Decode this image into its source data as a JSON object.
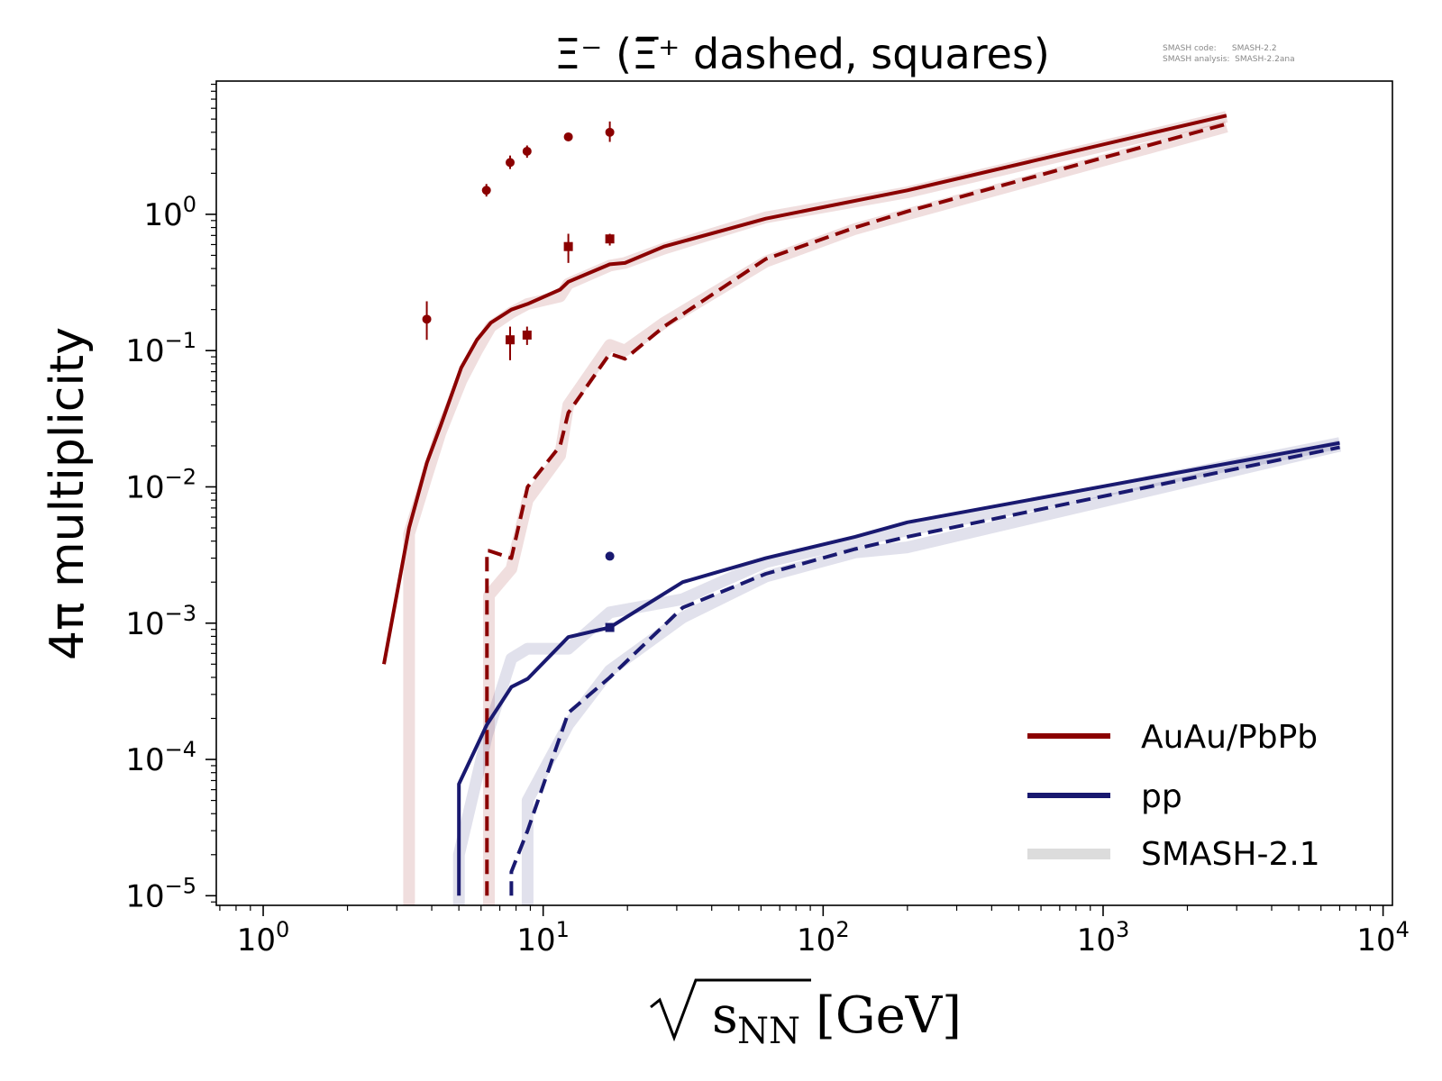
{
  "chart_data": {
    "type": "line",
    "title": "Ξ⁻ (Ξ̅⁺ dashed, squares)",
    "version_lines": [
      "SMASH code:      SMASH-2.2",
      "SMASH analysis:  SMASH-2.2ana"
    ],
    "ylabel": "4π multiplicity",
    "xlabel_radicand": "s",
    "xlabel_subscript": "NN",
    "xlabel_unit": "[GeV]",
    "x_scale": "log",
    "y_scale": "log",
    "xlim": [
      0.68,
      10800
    ],
    "ylim": [
      8.5e-06,
      9.5
    ],
    "x_ticks": [
      {
        "v": 1,
        "base": "10",
        "exp": "0"
      },
      {
        "v": 10,
        "base": "10",
        "exp": "1"
      },
      {
        "v": 100,
        "base": "10",
        "exp": "2"
      },
      {
        "v": 1000,
        "base": "10",
        "exp": "3"
      },
      {
        "v": 10000,
        "base": "10",
        "exp": "4"
      }
    ],
    "y_ticks": [
      {
        "v": 1,
        "base": "10",
        "exp": "0"
      },
      {
        "v": 0.1,
        "base": "10",
        "exp": "−1"
      },
      {
        "v": 0.01,
        "base": "10",
        "exp": "−2"
      },
      {
        "v": 0.001,
        "base": "10",
        "exp": "−3"
      },
      {
        "v": 0.0001,
        "base": "10",
        "exp": "−4"
      },
      {
        "v": 1e-05,
        "base": "10",
        "exp": "−5"
      }
    ],
    "grid": false,
    "legend_position": "bottom-right",
    "colors": {
      "auau": "#8b0000",
      "pp": "#191970",
      "smash21": "#dcdcdc"
    },
    "legend": [
      {
        "label": "AuAu/PbPb",
        "color": "#8b0000",
        "style": "solid"
      },
      {
        "label": "pp",
        "color": "#191970",
        "style": "solid"
      },
      {
        "label": "SMASH-2.1",
        "color": "#dcdcdc",
        "style": "band"
      }
    ],
    "series": [
      {
        "name": "AuAu/PbPb",
        "color": "#8b0000",
        "style": "solid",
        "x": [
          2.7,
          3.32,
          3.84,
          4.3,
          5.1,
          5.8,
          6.5,
          7.7,
          8.8,
          11.5,
          12.3,
          17.3,
          19.6,
          27,
          62.4,
          200,
          2760
        ],
        "y": [
          0.0005,
          0.005,
          0.015,
          0.028,
          0.075,
          0.12,
          0.16,
          0.2,
          0.22,
          0.28,
          0.32,
          0.43,
          0.44,
          0.58,
          0.93,
          1.5,
          5.3
        ]
      },
      {
        "color": "#8b0000",
        "style": "dashed",
        "x": [
          6.3,
          6.3,
          6.4,
          7.7,
          8.8,
          11.5,
          12.3,
          17.3,
          19.6,
          27,
          62.4,
          130,
          200,
          2760
        ],
        "y": [
          1e-05,
          0.0034,
          0.0034,
          0.003,
          0.01,
          0.02,
          0.035,
          0.095,
          0.087,
          0.15,
          0.47,
          0.8,
          1.05,
          4.6
        ]
      },
      {
        "name": "pp",
        "color": "#191970",
        "style": "solid",
        "x": [
          5,
          5,
          6.3,
          7.7,
          8.8,
          12.3,
          17.3,
          31.5,
          62.4,
          130,
          200,
          7000
        ],
        "y": [
          1e-05,
          6.6e-05,
          0.00018,
          0.00034,
          0.00039,
          0.00079,
          0.00093,
          0.002,
          0.003,
          0.0043,
          0.0055,
          0.021
        ]
      },
      {
        "color": "#191970",
        "style": "dashed",
        "x": [
          7.7,
          7.7,
          8.8,
          12.3,
          17.3,
          31.5,
          62.4,
          130,
          200,
          7000
        ],
        "y": [
          1e-05,
          1.5e-05,
          3e-05,
          0.00022,
          0.0004,
          0.0013,
          0.0023,
          0.0035,
          0.0043,
          0.0195
        ]
      },
      {
        "name": "SMASH-2.1",
        "color": "#dcdcdc",
        "style": "band",
        "tint": "#8b0000",
        "x": [
          3.32,
          3.32,
          3.84,
          4.3,
          5.1,
          5.8,
          6.5,
          7.7,
          8.8,
          11.5,
          12.3,
          17.3,
          19.6,
          27,
          62.4,
          200,
          2760
        ],
        "y": [
          8e-06,
          0.0045,
          0.012,
          0.025,
          0.06,
          0.1,
          0.15,
          0.19,
          0.22,
          0.25,
          0.31,
          0.42,
          0.44,
          0.56,
          0.95,
          1.45,
          5.2
        ]
      },
      {
        "color": "#dcdcdc",
        "style": "band",
        "tint": "#8b0000",
        "x": [
          6.4,
          6.4,
          7.7,
          8.8,
          11.5,
          12.3,
          17.3,
          19.6,
          27,
          62.4,
          130,
          200,
          2760
        ],
        "y": [
          8e-06,
          0.0016,
          0.0025,
          0.008,
          0.017,
          0.04,
          0.11,
          0.1,
          0.16,
          0.45,
          0.78,
          1.0,
          4.4
        ]
      },
      {
        "color": "#dcdcdc",
        "style": "band",
        "tint": "#191970",
        "x": [
          5,
          5,
          6.3,
          7.7,
          8.8,
          12.3,
          17.3,
          31.5,
          62.4,
          130,
          200,
          7000
        ],
        "y": [
          8e-06,
          2e-05,
          0.00015,
          0.00055,
          0.00065,
          0.00065,
          0.0012,
          0.0015,
          0.0028,
          0.004,
          0.0048,
          0.021
        ]
      },
      {
        "color": "#dcdcdc",
        "style": "band",
        "tint": "#191970",
        "x": [
          8.8,
          8.8,
          12.3,
          17.3,
          31.5,
          62.4,
          130,
          200,
          7000
        ],
        "y": [
          8e-06,
          5e-05,
          0.00018,
          0.00045,
          0.0011,
          0.0022,
          0.0033,
          0.0036,
          0.02
        ]
      }
    ],
    "data_points": [
      {
        "color": "#8b0000",
        "marker": "circle",
        "x": 3.84,
        "y": 0.17,
        "yerr_low": 0.12,
        "yerr_high": 0.23
      },
      {
        "color": "#8b0000",
        "marker": "circle",
        "x": 6.27,
        "y": 1.5,
        "yerr_low": 1.35,
        "yerr_high": 1.67
      },
      {
        "color": "#8b0000",
        "marker": "circle",
        "x": 7.62,
        "y": 2.4,
        "yerr_low": 2.15,
        "yerr_high": 2.7
      },
      {
        "color": "#8b0000",
        "marker": "circle",
        "x": 8.76,
        "y": 2.9,
        "yerr_low": 2.6,
        "yerr_high": 3.2
      },
      {
        "color": "#8b0000",
        "marker": "circle",
        "x": 12.3,
        "y": 3.7,
        "yerr_low": 3.55,
        "yerr_high": 3.85
      },
      {
        "color": "#8b0000",
        "marker": "circle",
        "x": 17.3,
        "y": 4.0,
        "yerr_low": 3.4,
        "yerr_high": 4.8
      },
      {
        "color": "#8b0000",
        "marker": "square",
        "x": 7.62,
        "y": 0.12,
        "yerr_low": 0.085,
        "yerr_high": 0.15
      },
      {
        "color": "#8b0000",
        "marker": "square",
        "x": 8.76,
        "y": 0.13,
        "yerr_low": 0.11,
        "yerr_high": 0.15
      },
      {
        "color": "#8b0000",
        "marker": "square",
        "x": 12.3,
        "y": 0.58,
        "yerr_low": 0.44,
        "yerr_high": 0.72
      },
      {
        "color": "#8b0000",
        "marker": "square",
        "x": 17.3,
        "y": 0.66,
        "yerr_low": 0.59,
        "yerr_high": 0.72
      },
      {
        "color": "#191970",
        "marker": "circle",
        "x": 17.3,
        "y": 0.0031,
        "yerr_low": 0.0029,
        "yerr_high": 0.0033
      },
      {
        "color": "#191970",
        "marker": "square",
        "x": 17.3,
        "y": 0.00093,
        "yerr_low": 0.00088,
        "yerr_high": 0.00098
      }
    ]
  }
}
